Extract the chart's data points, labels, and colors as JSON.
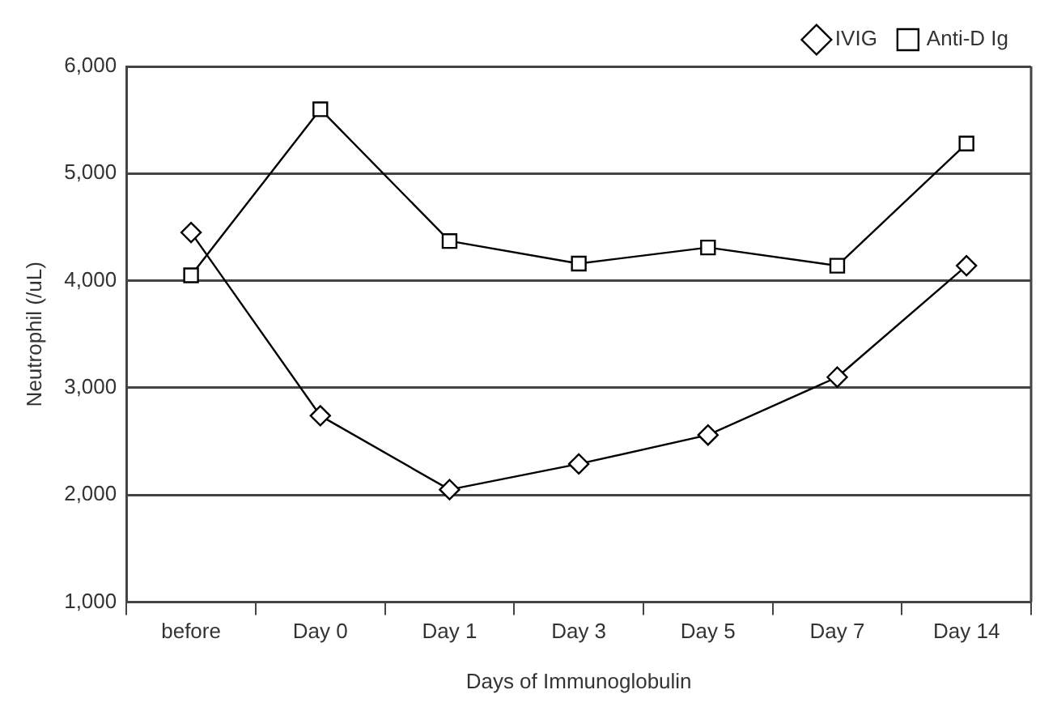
{
  "chart_data": {
    "type": "line",
    "xlabel": "Days of Immunoglobulin",
    "ylabel": "Neutrophil (/uL)",
    "categories": [
      "before",
      "Day 0",
      "Day 1",
      "Day 3",
      "Day 5",
      "Day 7",
      "Day 14"
    ],
    "series": [
      {
        "name": "IVIG",
        "color": "#000000",
        "marker": "diamond",
        "values": [
          4450,
          2740,
          2050,
          2290,
          2560,
          3100,
          4140
        ]
      },
      {
        "name": "Anti-D Ig",
        "color": "#000000",
        "marker": "square",
        "values": [
          4050,
          5600,
          4370,
          4160,
          4310,
          4140,
          5280
        ]
      }
    ],
    "ylim": [
      1000,
      6000
    ],
    "yticks": [
      {
        "value": 1000,
        "label": "1,000"
      },
      {
        "value": 2000,
        "label": "2,000"
      },
      {
        "value": 3000,
        "label": "3,000"
      },
      {
        "value": 4000,
        "label": "4,000"
      },
      {
        "value": 5000,
        "label": "5,000"
      },
      {
        "value": 6000,
        "label": "6,000"
      }
    ],
    "grid": "y",
    "legend": "top right",
    "line_style": "solid"
  }
}
